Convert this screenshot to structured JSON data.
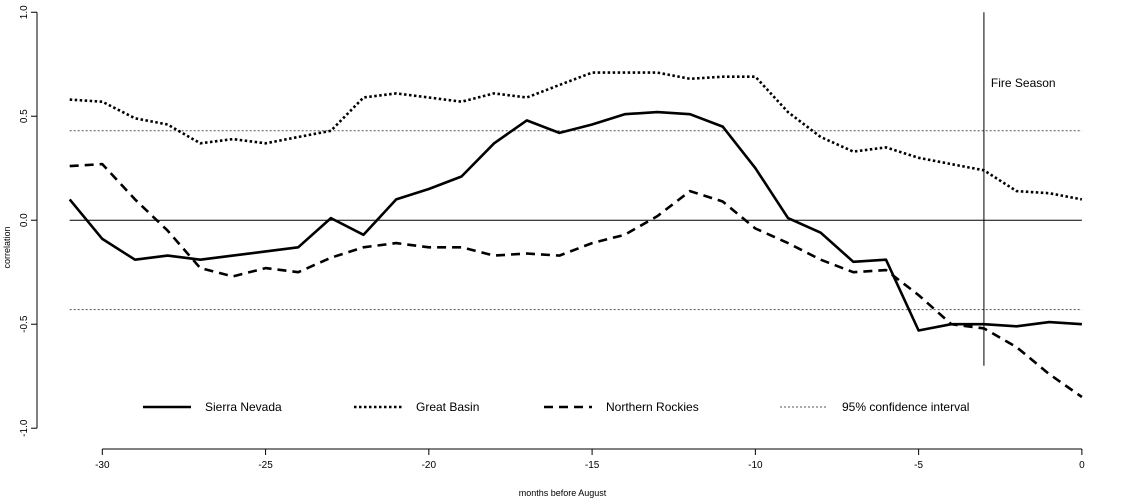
{
  "chart_data": {
    "type": "line",
    "xlabel": "months before August",
    "ylabel": "correlation",
    "xlim": [
      -32,
      0.8
    ],
    "ylim": [
      -1.1,
      1.03
    ],
    "xticks": [
      -30,
      -25,
      -20,
      -15,
      -10,
      -5,
      0
    ],
    "yticks": [
      -1.0,
      -0.5,
      0.0,
      0.5,
      1.0
    ],
    "ytick_labels": [
      "-1.0",
      "-0.5",
      "0.0",
      "0.5",
      "1.0"
    ],
    "x": [
      -31,
      -30,
      -29,
      -28,
      -27,
      -26,
      -25,
      -24,
      -23,
      -22,
      -21,
      -20,
      -19,
      -18,
      -17,
      -16,
      -15,
      -14,
      -13,
      -12,
      -11,
      -10,
      -9,
      -8,
      -7,
      -6,
      -5,
      -4,
      -3,
      -2,
      -1,
      0
    ],
    "series": [
      {
        "name": "Sierra Nevada",
        "style": "solid",
        "values": [
          0.1,
          -0.09,
          -0.19,
          -0.17,
          -0.19,
          -0.17,
          -0.15,
          -0.13,
          0.01,
          -0.07,
          0.1,
          0.15,
          0.21,
          0.37,
          0.48,
          0.42,
          0.46,
          0.51,
          0.52,
          0.51,
          0.45,
          0.25,
          0.01,
          -0.06,
          -0.2,
          -0.19,
          -0.53,
          -0.5,
          -0.5,
          -0.51,
          -0.49,
          -0.5
        ]
      },
      {
        "name": "Great Basin",
        "style": "dotted",
        "values": [
          0.58,
          0.57,
          0.49,
          0.46,
          0.37,
          0.39,
          0.37,
          0.4,
          0.43,
          0.59,
          0.61,
          0.59,
          0.57,
          0.61,
          0.59,
          0.65,
          0.71,
          0.71,
          0.71,
          0.68,
          0.69,
          0.69,
          0.52,
          0.4,
          0.33,
          0.35,
          0.3,
          0.27,
          0.24,
          0.14,
          0.13,
          0.1
        ]
      },
      {
        "name": "Northern Rockies",
        "style": "dashed",
        "values": [
          0.26,
          0.27,
          0.1,
          -0.05,
          -0.23,
          -0.27,
          -0.23,
          -0.25,
          -0.18,
          -0.13,
          -0.11,
          -0.13,
          -0.13,
          -0.17,
          -0.16,
          -0.17,
          -0.11,
          -0.07,
          0.02,
          0.14,
          0.09,
          -0.04,
          -0.11,
          -0.19,
          -0.25,
          -0.24,
          -0.36,
          -0.5,
          -0.52,
          -0.61,
          -0.74,
          -0.85
        ]
      }
    ],
    "confidence_interval": {
      "name": "95% confidence interval",
      "upper": 0.43,
      "lower": -0.43
    },
    "zero_line": 0.0,
    "annotation": {
      "label": "Fire Season",
      "x": -3,
      "y_range": [
        -0.7,
        1.0
      ]
    },
    "legend_position": "bottom",
    "grid": false
  }
}
